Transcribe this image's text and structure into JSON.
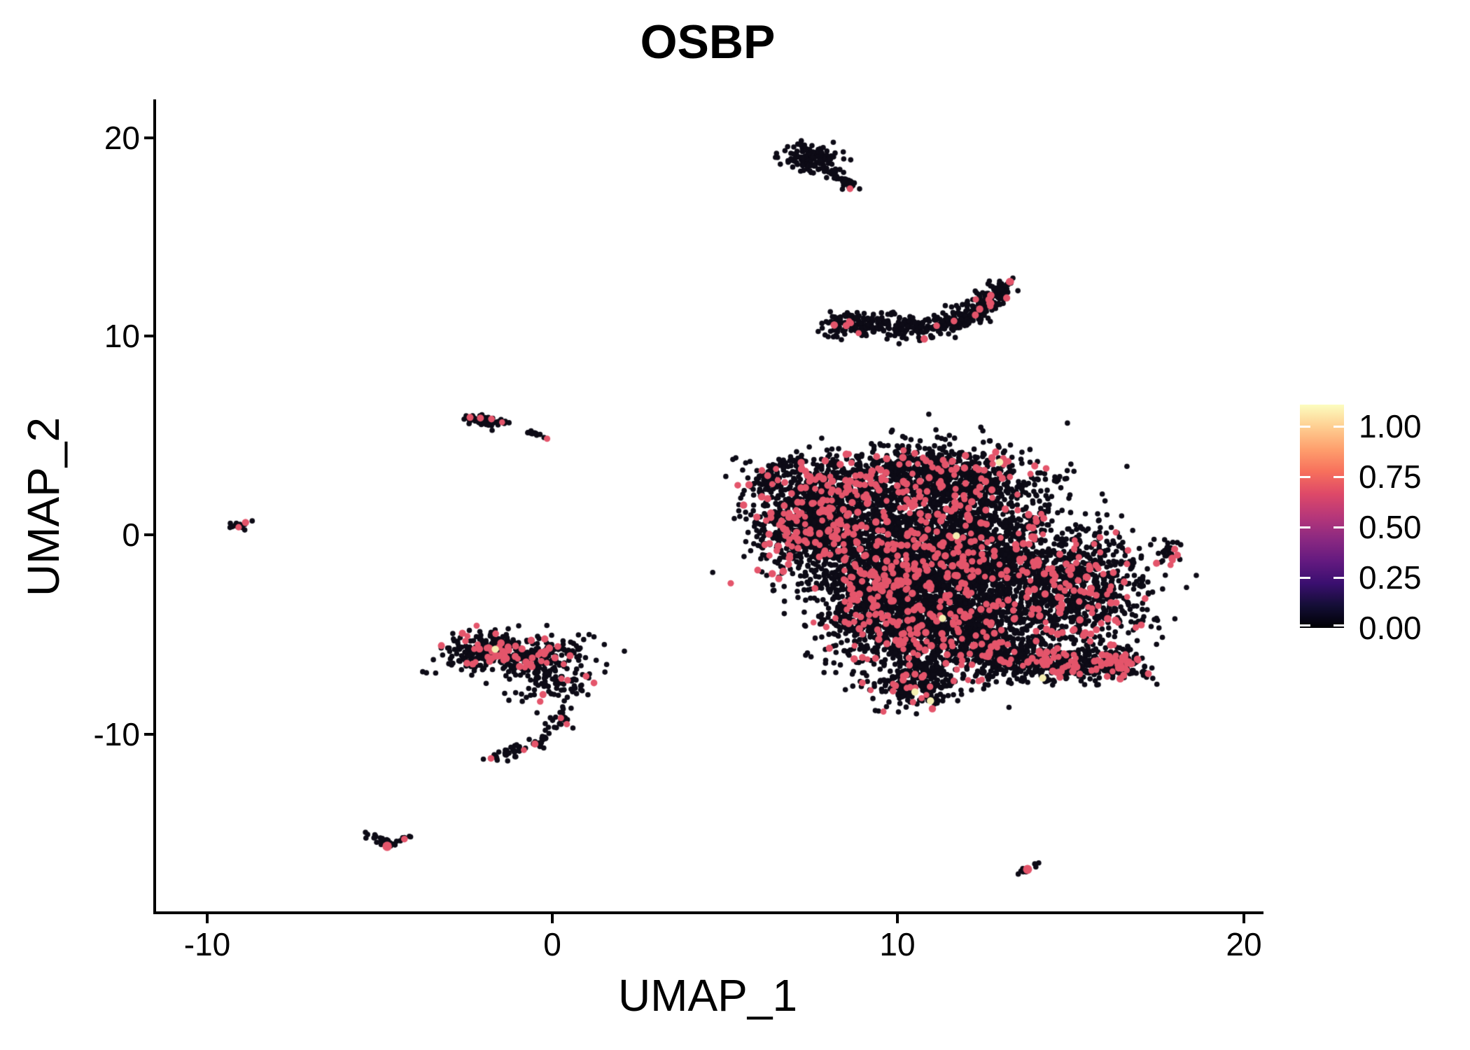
{
  "title": "OSBP",
  "axes": {
    "x": {
      "label": "UMAP_1",
      "tick_labels": [
        "-10",
        "0",
        "10",
        "20"
      ],
      "tick_values": [
        -10,
        0,
        10,
        20
      ]
    },
    "y": {
      "label": "UMAP_2",
      "tick_labels": [
        "20",
        "10",
        "0",
        "-10"
      ],
      "tick_values": [
        20,
        10,
        0,
        -10
      ]
    }
  },
  "legend": {
    "tick_labels": [
      "1.00",
      "0.75",
      "0.50",
      "0.25",
      "0.00"
    ],
    "tick_values": [
      1.0,
      0.75,
      0.5,
      0.25,
      0.0
    ],
    "colormap": "magma",
    "gradient_stops": [
      [
        "0%",
        "#000004"
      ],
      [
        "10%",
        "#140e36"
      ],
      [
        "20%",
        "#3b0f70"
      ],
      [
        "30%",
        "#641a80"
      ],
      [
        "40%",
        "#8c2981"
      ],
      [
        "50%",
        "#b73779"
      ],
      [
        "60%",
        "#de4968"
      ],
      [
        "70%",
        "#f7705c"
      ],
      [
        "80%",
        "#fe9f6d"
      ],
      [
        "90%",
        "#fece91"
      ],
      [
        "100%",
        "#fcfdbf"
      ]
    ]
  },
  "chart_data": {
    "type": "scatter",
    "title": "OSBP",
    "xlabel": "UMAP_1",
    "ylabel": "UMAP_2",
    "xlim": [
      -11.49,
      20.49
    ],
    "ylim": [
      -18.97,
      21.89
    ],
    "grid": false,
    "legend_position": "right",
    "colorbar": {
      "labels": [
        0.0,
        0.25,
        0.5,
        0.75,
        1.0
      ],
      "colormap": "magma",
      "data_range": [
        0,
        1.11
      ]
    },
    "point_colors": {
      "low_expression": "#0d0b16",
      "mid_expression": "#e4556b",
      "high_expression": "#f5efb2"
    },
    "point_radius": {
      "black": 3.8,
      "pink_min": 4.2,
      "pink_var": 1.2,
      "yellow": 5.2
    },
    "seed": 1234567,
    "clusters": [
      {
        "name": "top-small-blob",
        "shape": "gauss",
        "center": [
          7.55,
          18.95
        ],
        "sd": [
          0.38,
          0.33
        ],
        "points": 130,
        "pink_fraction": 0
      },
      {
        "name": "top-small-tail",
        "shape": "path",
        "path": [
          [
            8.0,
            18.4
          ],
          [
            8.65,
            17.45
          ]
        ],
        "jitter": [
          0.13,
          0.12
        ],
        "points": 45,
        "pink_fraction": 0
      },
      {
        "name": "banana",
        "shape": "path",
        "path": [
          [
            7.95,
            10.55
          ],
          [
            9.3,
            10.5
          ],
          [
            11.2,
            10.5
          ],
          [
            12.25,
            11.15
          ],
          [
            13.15,
            12.6
          ]
        ],
        "jitter": [
          0.18,
          0.3
        ],
        "points": 520,
        "pink_fraction": 0.035
      },
      {
        "name": "left-small-blob",
        "shape": "path",
        "path": [
          [
            -2.45,
            5.95
          ],
          [
            -1.95,
            5.8
          ],
          [
            -1.5,
            5.55
          ]
        ],
        "jitter": [
          0.16,
          0.14
        ],
        "points": 60,
        "pink_fraction": 0.03
      },
      {
        "name": "left-streak",
        "shape": "path",
        "path": [
          [
            -0.7,
            5.2
          ],
          [
            -0.2,
            4.85
          ]
        ],
        "jitter": [
          0.07,
          0.05
        ],
        "points": 11,
        "pink_fraction": 0
      },
      {
        "name": "far-left-dot",
        "shape": "gauss",
        "center": [
          -9.05,
          0.45
        ],
        "sd": [
          0.16,
          0.14
        ],
        "points": 13,
        "pink_fraction": 0
      },
      {
        "name": "hook-band",
        "shape": "gauss",
        "center": [
          -0.85,
          -6.05
        ],
        "sd": [
          0.95,
          0.5
        ],
        "points": 300,
        "pink_fraction": 0.13
      },
      {
        "name": "hook-band-left",
        "shape": "gauss",
        "center": [
          -2.05,
          -5.85
        ],
        "sd": [
          0.5,
          0.42
        ],
        "points": 130,
        "pink_fraction": 0.13
      },
      {
        "name": "hook-mid",
        "shape": "gauss",
        "center": [
          0.1,
          -7.5
        ],
        "sd": [
          0.55,
          0.55
        ],
        "points": 85,
        "pink_fraction": 0.05
      },
      {
        "name": "hook-tail",
        "shape": "path",
        "path": [
          [
            0.35,
            -8.8
          ],
          [
            0.05,
            -9.8
          ],
          [
            -0.6,
            -10.6
          ],
          [
            -1.4,
            -11.1
          ],
          [
            -1.95,
            -11.35
          ]
        ],
        "jitter": [
          0.16,
          0.14
        ],
        "points": 75,
        "pink_fraction": 0.05
      },
      {
        "name": "bottom-left-v",
        "shape": "path",
        "path": [
          [
            -5.3,
            -15.05
          ],
          [
            -4.85,
            -15.6
          ],
          [
            -4.45,
            -15.35
          ],
          [
            -4.0,
            -15.15
          ]
        ],
        "jitter": [
          0.11,
          0.1
        ],
        "points": 34,
        "pink_fraction": 0
      },
      {
        "name": "bottom-right-streak",
        "shape": "path",
        "path": [
          [
            14.05,
            -16.45
          ],
          [
            13.5,
            -17.1
          ]
        ],
        "jitter": [
          0.08,
          0.07
        ],
        "points": 10,
        "pink_fraction": 0
      },
      {
        "name": "right-small",
        "shape": "gauss",
        "center": [
          17.85,
          -0.85
        ],
        "sd": [
          0.22,
          0.32
        ],
        "points": 24,
        "pink_fraction": 0.08
      },
      {
        "name": "main-left-lobe",
        "shape": "gauss",
        "center": [
          7.7,
          0.9
        ],
        "sd": [
          0.85,
          1.35
        ],
        "points": 1100,
        "pink_fraction": 0.13
      },
      {
        "name": "main-top-lobe",
        "shape": "gauss",
        "center": [
          10.8,
          2.8
        ],
        "sd": [
          1.5,
          0.85
        ],
        "points": 1000,
        "pink_fraction": 0.1
      },
      {
        "name": "main-center",
        "shape": "gauss",
        "center": [
          11.3,
          -0.9
        ],
        "sd": [
          1.7,
          1.6
        ],
        "points": 2600,
        "pink_fraction": 0.08
      },
      {
        "name": "main-lower",
        "shape": "gauss",
        "center": [
          11.6,
          -4.6
        ],
        "sd": [
          1.6,
          1.25
        ],
        "points": 1500,
        "pink_fraction": 0.09
      },
      {
        "name": "main-left-lower",
        "shape": "gauss",
        "center": [
          9.4,
          -3.2
        ],
        "sd": [
          0.8,
          1.5
        ],
        "points": 600,
        "pink_fraction": 0.1
      },
      {
        "name": "main-right-lobe",
        "shape": "gauss",
        "center": [
          15.2,
          -2.7
        ],
        "sd": [
          1.05,
          1.45
        ],
        "points": 800,
        "pink_fraction": 0.1
      },
      {
        "name": "main-bottom-arm",
        "shape": "path",
        "path": [
          [
            12.3,
            -5.9
          ],
          [
            14.4,
            -6.6
          ],
          [
            16.75,
            -6.5
          ]
        ],
        "jitter": [
          0.42,
          0.4
        ],
        "points": 520,
        "pink_fraction": 0.13
      },
      {
        "name": "main-arm-tip",
        "shape": "gauss",
        "center": [
          16.35,
          -6.4
        ],
        "sd": [
          0.33,
          0.33
        ],
        "points": 70,
        "pink_fraction": 0.45
      },
      {
        "name": "main-bottom-tip",
        "shape": "gauss",
        "center": [
          10.6,
          -7.5
        ],
        "sd": [
          0.7,
          0.55
        ],
        "points": 260,
        "pink_fraction": 0.08
      },
      {
        "name": "main-top-spur",
        "shape": "path",
        "path": [
          [
            5.85,
            2.1
          ],
          [
            6.55,
            3.3
          ],
          [
            7.0,
            3.7
          ]
        ],
        "jitter": [
          0.22,
          0.25
        ],
        "points": 70,
        "pink_fraction": 0.04
      },
      {
        "name": "spur-noise",
        "shape": "gauss",
        "center": [
          5.75,
          3.6
        ],
        "sd": [
          0.25,
          0.45
        ],
        "points": 8,
        "pink_fraction": 0
      }
    ],
    "highlight_points": {
      "pink": [
        [
          8.62,
          17.4,
          4.8
        ],
        [
          -0.15,
          4.83,
          4.6
        ],
        [
          -8.88,
          0.62,
          5.2
        ],
        [
          -9.08,
          0.38,
          4.6
        ],
        [
          -2.38,
          5.9,
          5.0
        ],
        [
          -2.08,
          5.87,
          5.0
        ],
        [
          -1.76,
          5.82,
          4.8
        ],
        [
          -4.78,
          -15.66,
          6.8
        ],
        [
          -4.28,
          -15.3,
          4.8
        ],
        [
          13.76,
          -16.82,
          6.5
        ],
        [
          18.02,
          -0.72,
          5.0
        ],
        [
          18.1,
          -1.02,
          5.0
        ],
        [
          17.96,
          -1.28,
          4.6
        ],
        [
          17.9,
          -1.52,
          4.4
        ]
      ],
      "yellow": [
        [
          12.95,
          3.65
        ],
        [
          11.7,
          -0.05
        ],
        [
          11.3,
          -4.2
        ],
        [
          10.5,
          -7.9
        ],
        [
          10.95,
          -8.35
        ],
        [
          14.2,
          -7.2
        ],
        [
          -1.65,
          -5.75
        ]
      ]
    }
  }
}
